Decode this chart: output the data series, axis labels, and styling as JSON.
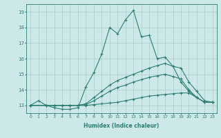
{
  "xlabel": "Humidex (Indice chaleur)",
  "ylabel": "",
  "background_color": "#cce8e8",
  "grid_color": "#b0d0d0",
  "line_color": "#2e7d72",
  "xlim": [
    -0.5,
    23.5
  ],
  "ylim": [
    12.5,
    19.5
  ],
  "xticks": [
    0,
    1,
    2,
    3,
    4,
    5,
    6,
    7,
    8,
    9,
    10,
    11,
    12,
    13,
    14,
    15,
    16,
    17,
    18,
    19,
    20,
    21,
    22,
    23
  ],
  "yticks": [
    13,
    14,
    15,
    16,
    17,
    18,
    19
  ],
  "lines": [
    {
      "x": [
        0,
        1,
        2,
        3,
        4,
        5,
        6,
        7,
        8,
        9,
        10,
        11,
        12,
        13,
        14,
        15,
        16,
        17,
        18,
        19,
        20,
        21,
        22,
        23
      ],
      "y": [
        13.0,
        13.3,
        13.0,
        12.85,
        12.75,
        12.75,
        12.85,
        14.2,
        15.1,
        16.3,
        18.0,
        17.6,
        18.5,
        19.1,
        17.4,
        17.5,
        16.0,
        16.1,
        15.5,
        14.5,
        13.9,
        13.5,
        13.2,
        13.2
      ]
    },
    {
      "x": [
        0,
        2,
        3,
        4,
        5,
        6,
        7,
        8,
        9,
        10,
        11,
        12,
        13,
        14,
        15,
        16,
        17,
        18,
        19,
        20,
        21,
        22,
        23
      ],
      "y": [
        13.0,
        13.0,
        13.0,
        13.0,
        13.0,
        13.0,
        13.1,
        13.5,
        13.9,
        14.3,
        14.6,
        14.8,
        15.0,
        15.2,
        15.4,
        15.55,
        15.7,
        15.5,
        15.4,
        14.5,
        13.9,
        13.3,
        13.2
      ]
    },
    {
      "x": [
        0,
        2,
        3,
        4,
        5,
        6,
        7,
        8,
        9,
        10,
        11,
        12,
        13,
        14,
        15,
        16,
        17,
        18,
        19,
        20,
        21,
        22,
        23
      ],
      "y": [
        13.0,
        13.0,
        13.0,
        13.0,
        13.0,
        13.0,
        13.05,
        13.3,
        13.6,
        13.9,
        14.15,
        14.3,
        14.5,
        14.65,
        14.8,
        14.9,
        15.0,
        14.85,
        14.7,
        14.0,
        13.5,
        13.2,
        13.2
      ]
    },
    {
      "x": [
        0,
        2,
        3,
        4,
        5,
        6,
        7,
        8,
        9,
        10,
        11,
        12,
        13,
        14,
        15,
        16,
        17,
        18,
        19,
        20,
        21,
        22,
        23
      ],
      "y": [
        13.0,
        13.0,
        13.0,
        13.0,
        13.0,
        13.0,
        13.0,
        13.05,
        13.1,
        13.15,
        13.2,
        13.3,
        13.4,
        13.5,
        13.6,
        13.65,
        13.7,
        13.75,
        13.8,
        13.8,
        13.5,
        13.2,
        13.2
      ]
    }
  ]
}
